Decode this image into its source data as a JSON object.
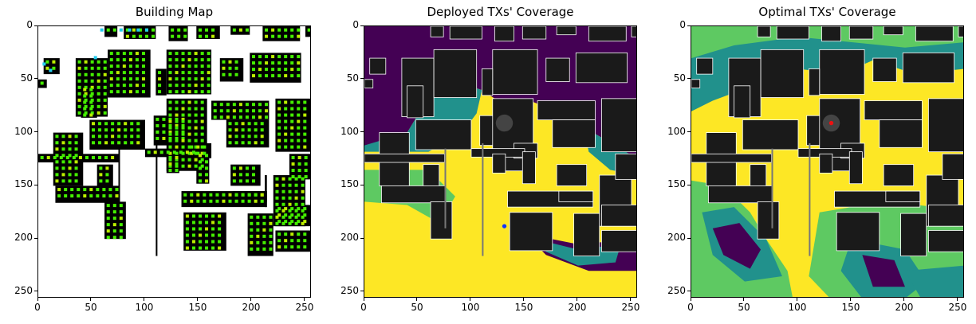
{
  "chart_data": [
    {
      "type": "heatmap",
      "title": "Building Map",
      "xlim": [
        0,
        256
      ],
      "ylim": [
        256,
        0
      ],
      "xticks": [
        0,
        50,
        100,
        150,
        200,
        250
      ],
      "yticks": [
        0,
        50,
        100,
        150,
        200,
        250
      ],
      "legend": "none",
      "colors": {
        "background": "#ffffff",
        "building": "#000000",
        "marker_green": "#44ee00",
        "marker_lime": "#bbee00",
        "marker_cyan": "#22ccee"
      }
    },
    {
      "type": "heatmap",
      "title": "Deployed TXs' Coverage",
      "xlim": [
        0,
        256
      ],
      "ylim": [
        256,
        0
      ],
      "xticks": [
        0,
        50,
        100,
        150,
        200,
        250
      ],
      "yticks": [
        0,
        50,
        100,
        150,
        200,
        250
      ],
      "legend": "none",
      "transmitter": {
        "x": 131,
        "y": 188,
        "color": "#1133ff"
      },
      "colors": {
        "high": "#fde725",
        "mid_high": "#5ec962",
        "mid": "#21918c",
        "low": "#440154",
        "building": "#1a1a1a",
        "outline": "#ffffff"
      }
    },
    {
      "type": "heatmap",
      "title": "Optimal TXs' Coverage",
      "xlim": [
        0,
        256
      ],
      "ylim": [
        256,
        0
      ],
      "xticks": [
        0,
        50,
        100,
        150,
        200,
        250
      ],
      "yticks": [
        0,
        50,
        100,
        150,
        200,
        250
      ],
      "legend": "none",
      "transmitter": {
        "x": 131,
        "y": 91,
        "color": "#ee1111"
      },
      "colors": {
        "high": "#fde725",
        "mid_high": "#5ec962",
        "mid": "#21918c",
        "low": "#440154",
        "building": "#1a1a1a",
        "outline": "#ffffff"
      }
    }
  ]
}
